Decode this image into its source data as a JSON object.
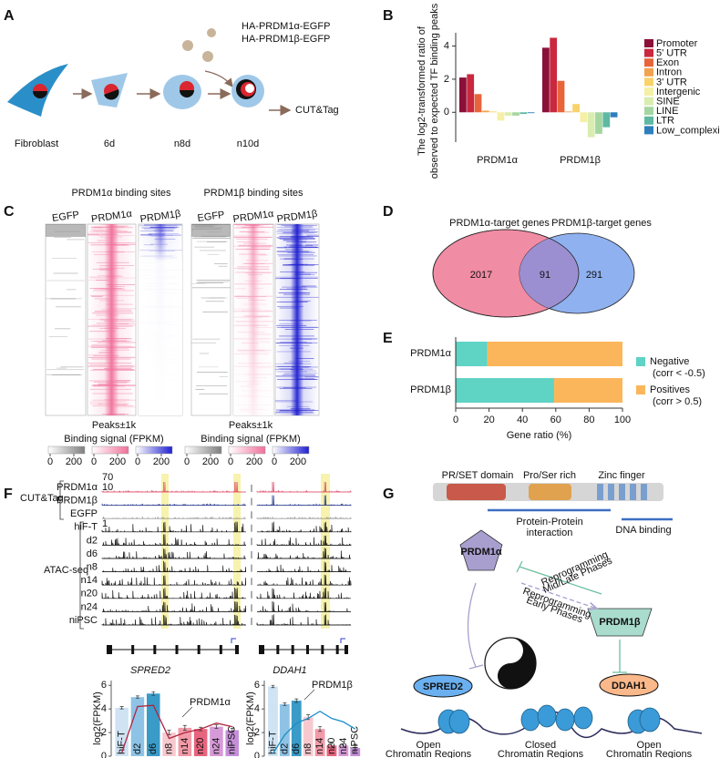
{
  "panel_labels": [
    "A",
    "B",
    "C",
    "D",
    "E",
    "F",
    "G"
  ],
  "panel_a": {
    "constructs": [
      "HA-PRDM1α-EGFP",
      "HA-PRDM1β-EGFP"
    ],
    "stages": [
      "Fibroblast",
      "6d",
      "n8d",
      "n10d"
    ],
    "output": "CUT&Tag"
  },
  "chart_data": [
    {
      "type": "bar",
      "ylabel": [
        "The log2-transformed ratio of",
        "observed to expected TF binding peaks"
      ],
      "categories": [
        "PRDM1α",
        "PRDM1β"
      ],
      "series": [
        {
          "name": "Promoter",
          "color": "#8b1038",
          "values": [
            2.1,
            3.9
          ]
        },
        {
          "name": "5' UTR",
          "color": "#c9283e",
          "values": [
            2.3,
            4.5
          ]
        },
        {
          "name": "Exon",
          "color": "#e8653b",
          "values": [
            1.1,
            1.9
          ]
        },
        {
          "name": "Intron",
          "color": "#f3a250",
          "values": [
            0.1,
            0.05
          ]
        },
        {
          "name": "3' UTR",
          "color": "#f8d36b",
          "values": [
            0.05,
            0.5
          ]
        },
        {
          "name": "Intergenic",
          "color": "#f6f0a6",
          "values": [
            -0.5,
            -0.6
          ]
        },
        {
          "name": "SINE",
          "color": "#d9edb0",
          "values": [
            -0.2,
            -1.5
          ]
        },
        {
          "name": "LINE",
          "color": "#a5d6a2",
          "values": [
            -0.2,
            -1.3
          ]
        },
        {
          "name": "LTR",
          "color": "#5fb8a2",
          "values": [
            -0.1,
            -0.9
          ]
        },
        {
          "name": "Low_complexity",
          "color": "#2f7fbd",
          "values": [
            -0.05,
            -0.3
          ]
        }
      ],
      "ylim": [
        -1.8,
        4.8
      ],
      "yticks": [
        0,
        2,
        4
      ]
    },
    {
      "type": "bar",
      "orientation": "horizontal",
      "stacked": true,
      "xlabel": "Gene ratio (%)",
      "categories": [
        "PRDM1α",
        "PRDM1β"
      ],
      "series": [
        {
          "name": "Negative",
          "condition": "(corr < -0.5)",
          "color": "#5fd3c4",
          "values": [
            19,
            59
          ]
        },
        {
          "name": "Positives",
          "condition": "(corr > 0.5)",
          "color": "#fbb65b",
          "values": [
            81,
            41
          ]
        }
      ],
      "xlim": [
        0,
        100
      ],
      "xticks": [
        0,
        20,
        40,
        60,
        80,
        100
      ]
    },
    {
      "type": "bar",
      "ylabel": "log2(FPKM)",
      "categories": [
        "hiF-T",
        "d2",
        "d6",
        "n8",
        "n14",
        "n20",
        "n24",
        "niPSC"
      ],
      "values": [
        4.1,
        5.0,
        5.3,
        2.0,
        2.4,
        2.3,
        2.5,
        2.2
      ],
      "errors": [
        0.1,
        0.1,
        0.15,
        0.2,
        0.2,
        0.15,
        0.15,
        0.15
      ],
      "colors": [
        "#cfe3f3",
        "#8ec3e6",
        "#3a9bc8",
        "#f7c9cf",
        "#f29aa8",
        "#e8647e",
        "#d79ad8",
        "#c58fd8"
      ],
      "line": {
        "name": "PRDM1α",
        "color": "#b0253f",
        "values": [
          0.3,
          4.2,
          4.3,
          1.5,
          2.0,
          2.3,
          2.8,
          2.5
        ]
      },
      "ylim": [
        0,
        6.4
      ],
      "yticks": [
        0,
        2,
        4,
        6
      ]
    },
    {
      "type": "bar",
      "ylabel": "log2(FPKM)",
      "categories": [
        "hiF-T",
        "d2",
        "d6",
        "n8",
        "n14",
        "n20",
        "n24",
        "niPSC"
      ],
      "values": [
        5.9,
        4.4,
        4.7,
        3.3,
        2.3,
        0.9,
        0.9,
        0.7
      ],
      "errors": [
        0.1,
        0.1,
        0.15,
        0.2,
        0.2,
        0.2,
        0.15,
        0.3
      ],
      "colors": [
        "#cfe3f3",
        "#8ec3e6",
        "#3a9bc8",
        "#f7c9cf",
        "#f29aa8",
        "#e8647e",
        "#d79ad8",
        "#c58fd8"
      ],
      "line": {
        "name": "PRDM1β",
        "color": "#1a8fc8",
        "values": [
          0.2,
          1.8,
          2.8,
          3.2,
          3.8,
          3.2,
          2.9,
          2.3
        ]
      },
      "ylim": [
        0,
        6.4
      ],
      "yticks": [
        0,
        2,
        4,
        6
      ]
    }
  ],
  "panel_c": {
    "titles": [
      "PRDM1α binding sites",
      "PRDM1β binding sites"
    ],
    "tracks": [
      "EGFP",
      "PRDM1α",
      "PRDM1β"
    ],
    "xlabel": "Peaks±1k",
    "colorbar_label": "Binding signal (FPKM)",
    "colorbar_ticks": [
      0,
      200
    ]
  },
  "panel_d": {
    "sets": [
      "PRDM1α-target genes",
      "PRDM1β-target genes"
    ],
    "counts": [
      2017,
      91,
      291
    ]
  },
  "panel_f": {
    "assays": [
      "CUT&Tag",
      "ATAC-seq"
    ],
    "cuttag_tracks": [
      "PRDM1α",
      "PRDM1β",
      "EGFP"
    ],
    "atac_tracks": [
      "hiF-T",
      "d2",
      "d6",
      "n8",
      "n14",
      "n20",
      "n24",
      "niPSC"
    ],
    "genes": [
      "SPRED2",
      "DDAH1"
    ],
    "scale_labels": [
      70,
      10,
      1
    ]
  },
  "panel_g": {
    "domains": [
      "PR/SET domain",
      "Pro/Ser rich",
      "Zinc finger"
    ],
    "regions": [
      [
        "Protein-Protein",
        "interaction"
      ],
      [
        "DNA binding"
      ]
    ],
    "proteins": [
      "PRDM1α",
      "PRDM1β"
    ],
    "phases": [
      [
        "Reprogramming",
        "Mid/Late Phases"
      ],
      [
        "Reprogramming",
        "Early Phases"
      ]
    ],
    "targets": [
      "SPRED2",
      "DDAH1"
    ],
    "chromatin": [
      [
        "Open",
        "Chromatin Regions"
      ],
      [
        "Closed",
        "Chromatin Regions"
      ],
      [
        "Open",
        "Chromatin Regions"
      ]
    ]
  }
}
